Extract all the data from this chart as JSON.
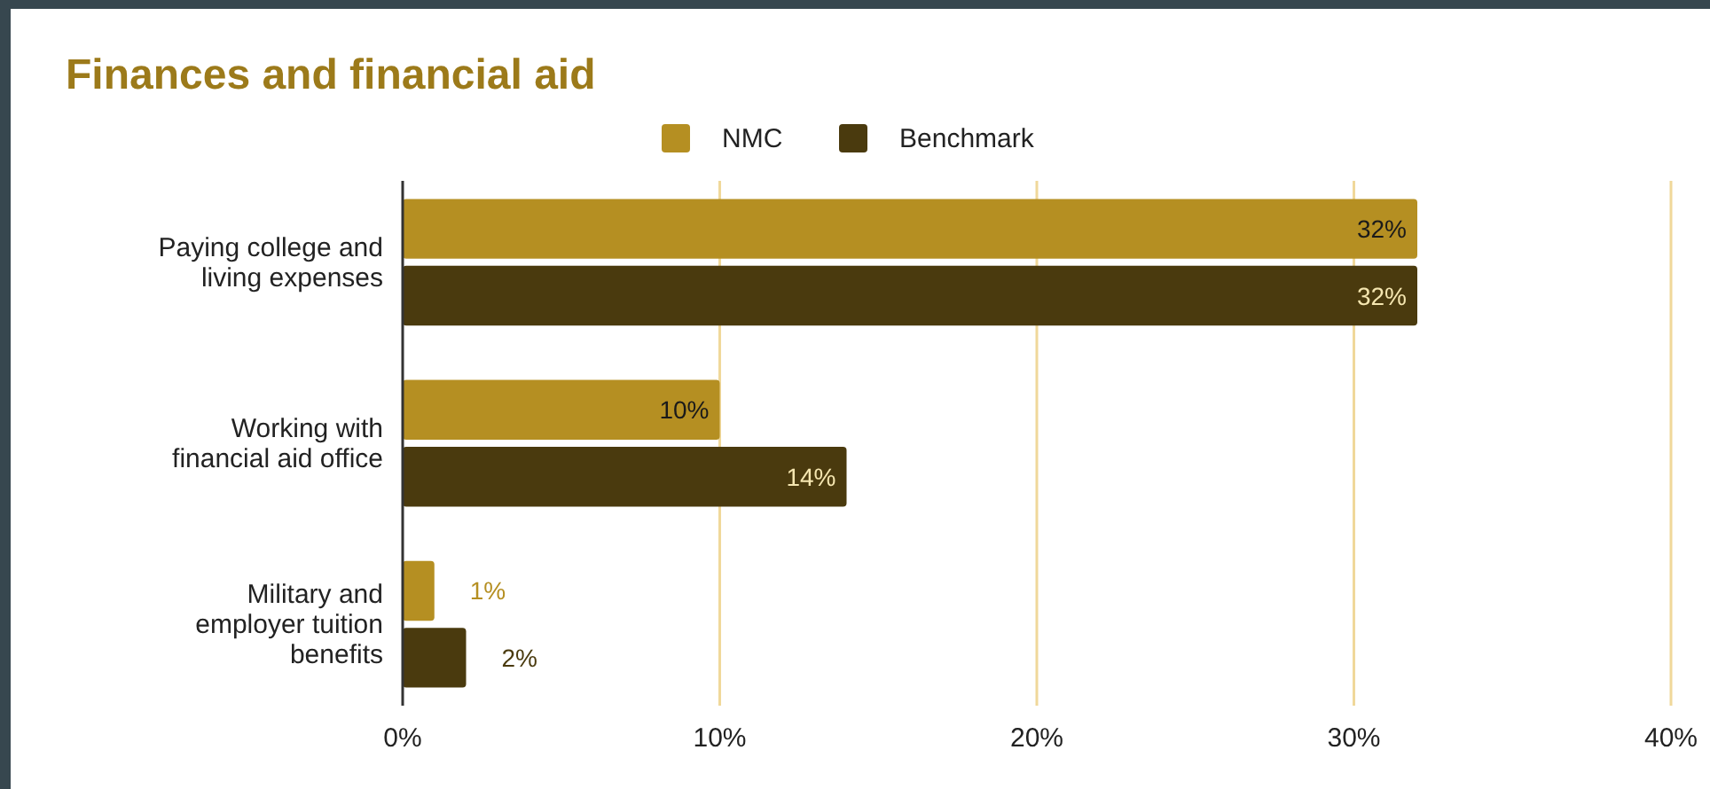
{
  "chart_data": {
    "type": "bar",
    "orientation": "horizontal",
    "title": "Finances and financial aid",
    "categories": [
      "Paying college and living expenses",
      "Working with financial aid office",
      "Military and employer tuition benefits"
    ],
    "series": [
      {
        "name": "NMC",
        "color": "#b58f22",
        "values": [
          32,
          10,
          1
        ],
        "value_labels": [
          "32%",
          "10%",
          "1%"
        ]
      },
      {
        "name": "Benchmark",
        "color": "#4a3a0e",
        "values": [
          32,
          14,
          2
        ],
        "value_labels": [
          "32%",
          "14%",
          "2%"
        ]
      }
    ],
    "xlim": [
      0,
      40
    ],
    "xticks": [
      {
        "value": 0,
        "label": "0%"
      },
      {
        "value": 10,
        "label": "10%"
      },
      {
        "value": 20,
        "label": "20%"
      },
      {
        "value": 30,
        "label": "30%"
      },
      {
        "value": 40,
        "label": "40%"
      }
    ],
    "grid": "x",
    "legend": "top"
  }
}
